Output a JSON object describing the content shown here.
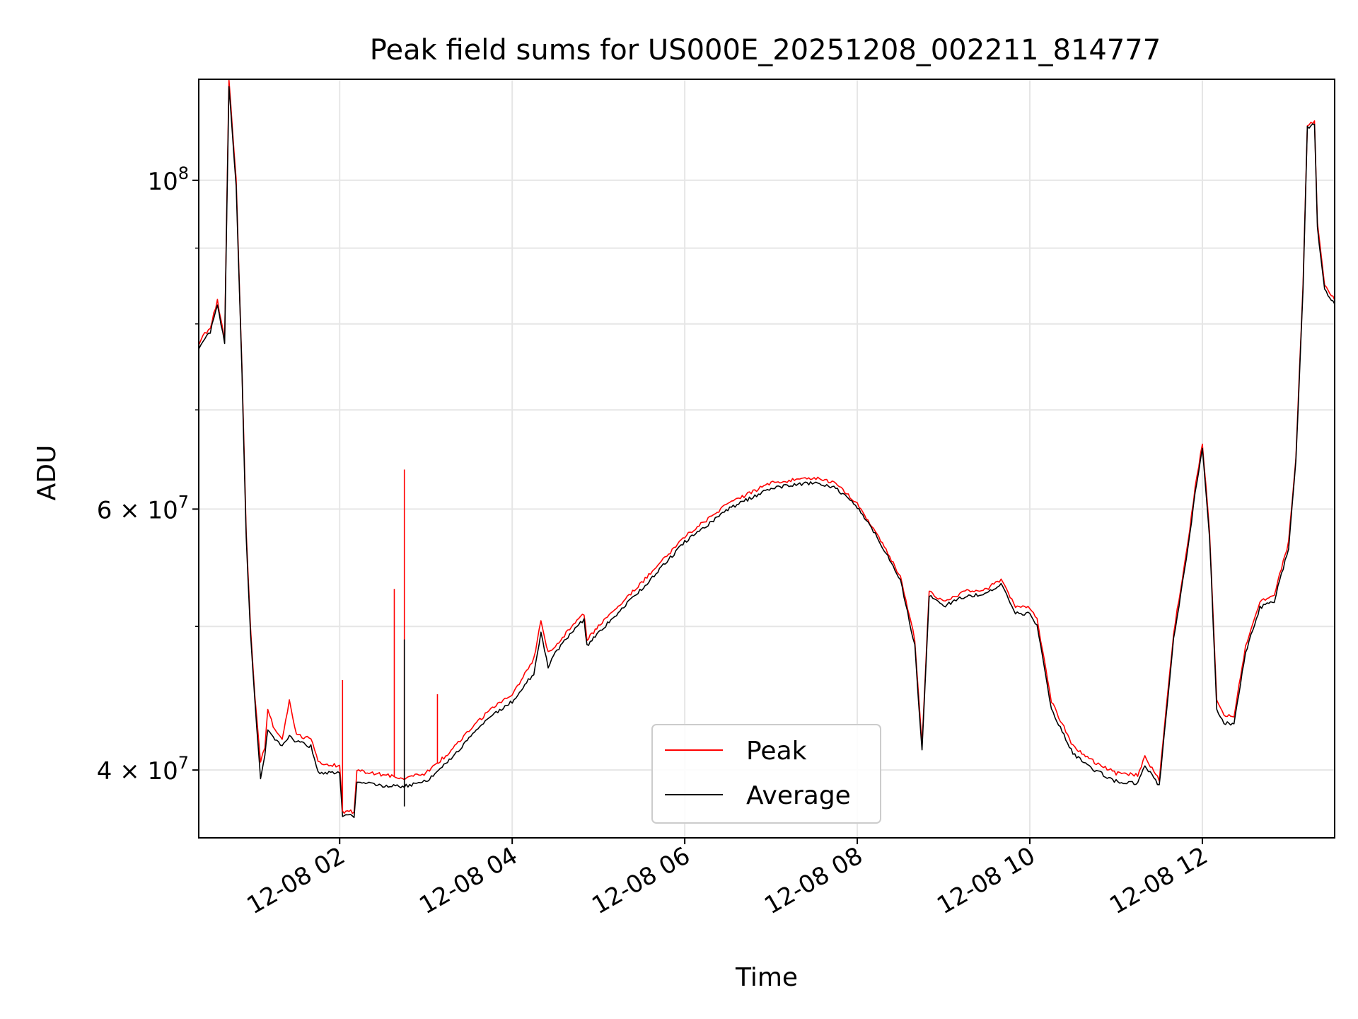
{
  "chart_data": {
    "type": "line",
    "title": "Peak field sums for US000E_20251208_002211_814777",
    "xlabel": "Time",
    "ylabel": "ADU",
    "y_scale": "log",
    "ylim": [
      36000000,
      117000000
    ],
    "xlim": [
      "12-08 00:22",
      "12-08 13:32"
    ],
    "grid": true,
    "legend_position": "lower center",
    "x_ticks": [
      {
        "t": "12-08 02:00",
        "label": "12-08 02"
      },
      {
        "t": "12-08 04:00",
        "label": "12-08 04"
      },
      {
        "t": "12-08 06:00",
        "label": "12-08 06"
      },
      {
        "t": "12-08 08:00",
        "label": "12-08 08"
      },
      {
        "t": "12-08 10:00",
        "label": "12-08 10"
      },
      {
        "t": "12-08 12:00",
        "label": "12-08 12"
      }
    ],
    "y_ticks": [
      {
        "v": 100000000,
        "base": "10",
        "exp": "8"
      },
      {
        "v": 60000000,
        "base": "6 × 10",
        "exp": "7"
      },
      {
        "v": 40000000,
        "base": "4 × 10",
        "exp": "7"
      }
    ],
    "y_minor_ticks": [
      50000000,
      70000000,
      80000000,
      90000000
    ],
    "series": [
      {
        "name": "Peak",
        "color": "#ff0000",
        "points": [
          [
            "12-08 00:22",
            77500000
          ],
          [
            "12-08 00:25",
            78500000
          ],
          [
            "12-08 00:30",
            79500000
          ],
          [
            "12-08 00:35",
            83000000
          ],
          [
            "12-08 00:40",
            78000000
          ],
          [
            "12-08 00:43",
            117000000
          ],
          [
            "12-08 00:48",
            100000000
          ],
          [
            "12-08 00:52",
            75000000
          ],
          [
            "12-08 00:55",
            58000000
          ],
          [
            "12-08 00:58",
            50000000
          ],
          [
            "12-08 01:01",
            45000000
          ],
          [
            "12-08 01:05",
            40500000
          ],
          [
            "12-08 01:08",
            41500000
          ],
          [
            "12-08 01:10",
            44000000
          ],
          [
            "12-08 01:15",
            42500000
          ],
          [
            "12-08 01:20",
            42000000
          ],
          [
            "12-08 01:25",
            44500000
          ],
          [
            "12-08 01:30",
            42200000
          ],
          [
            "12-08 01:40",
            42000000
          ],
          [
            "12-08 01:45",
            40500000
          ],
          [
            "12-08 01:55",
            40300000
          ],
          [
            "12-08 02:00",
            40300000
          ],
          [
            "12-08 02:02",
            37500000
          ],
          [
            "12-08 02:10",
            37500000
          ],
          [
            "12-08 02:12",
            40000000
          ],
          [
            "12-08 02:30",
            39700000
          ],
          [
            "12-08 02:45",
            39500000
          ],
          [
            "12-08 03:00",
            39800000
          ],
          [
            "12-08 03:15",
            41000000
          ],
          [
            "12-08 03:30",
            42500000
          ],
          [
            "12-08 03:45",
            44000000
          ],
          [
            "12-08 04:00",
            45000000
          ],
          [
            "12-08 04:15",
            47500000
          ],
          [
            "12-08 04:20",
            50500000
          ],
          [
            "12-08 04:25",
            48000000
          ],
          [
            "12-08 04:30",
            48500000
          ],
          [
            "12-08 04:45",
            50500000
          ],
          [
            "12-08 04:50",
            51000000
          ],
          [
            "12-08 04:52",
            49000000
          ],
          [
            "12-08 05:00",
            50000000
          ],
          [
            "12-08 05:30",
            53500000
          ],
          [
            "12-08 06:00",
            57500000
          ],
          [
            "12-08 06:30",
            60500000
          ],
          [
            "12-08 07:00",
            62500000
          ],
          [
            "12-08 07:30",
            63000000
          ],
          [
            "12-08 07:45",
            62500000
          ],
          [
            "12-08 08:00",
            60500000
          ],
          [
            "12-08 08:15",
            57500000
          ],
          [
            "12-08 08:30",
            54000000
          ],
          [
            "12-08 08:40",
            49000000
          ],
          [
            "12-08 08:45",
            41500000
          ],
          [
            "12-08 08:50",
            52800000
          ],
          [
            "12-08 09:00",
            52000000
          ],
          [
            "12-08 09:15",
            52800000
          ],
          [
            "12-08 09:30",
            53000000
          ],
          [
            "12-08 09:40",
            53800000
          ],
          [
            "12-08 09:50",
            51500000
          ],
          [
            "12-08 10:00",
            51500000
          ],
          [
            "12-08 10:05",
            50500000
          ],
          [
            "12-08 10:15",
            44500000
          ],
          [
            "12-08 10:30",
            41500000
          ],
          [
            "12-08 10:45",
            40500000
          ],
          [
            "12-08 11:00",
            39800000
          ],
          [
            "12-08 11:15",
            39700000
          ],
          [
            "12-08 11:20",
            40800000
          ],
          [
            "12-08 11:30",
            39400000
          ],
          [
            "12-08 11:40",
            49500000
          ],
          [
            "12-08 11:50",
            57000000
          ],
          [
            "12-08 11:55",
            62000000
          ],
          [
            "12-08 12:00",
            66500000
          ],
          [
            "12-08 12:05",
            58000000
          ],
          [
            "12-08 12:10",
            44500000
          ],
          [
            "12-08 12:15",
            43500000
          ],
          [
            "12-08 12:22",
            43500000
          ],
          [
            "12-08 12:30",
            48500000
          ],
          [
            "12-08 12:40",
            52000000
          ],
          [
            "12-08 12:50",
            52500000
          ],
          [
            "12-08 13:00",
            57000000
          ],
          [
            "12-08 13:05",
            65000000
          ],
          [
            "12-08 13:10",
            85000000
          ],
          [
            "12-08 13:13",
            109000000
          ],
          [
            "12-08 13:18",
            109500000
          ],
          [
            "12-08 13:20",
            93500000
          ],
          [
            "12-08 13:25",
            85000000
          ],
          [
            "12-08 13:32",
            83000000
          ]
        ]
      },
      {
        "name": "Average",
        "color": "#000000",
        "points": [
          [
            "12-08 00:22",
            77000000
          ],
          [
            "12-08 00:25",
            78000000
          ],
          [
            "12-08 00:30",
            79000000
          ],
          [
            "12-08 00:35",
            82500000
          ],
          [
            "12-08 00:40",
            77500000
          ],
          [
            "12-08 00:43",
            116000000
          ],
          [
            "12-08 00:48",
            99000000
          ],
          [
            "12-08 00:52",
            74500000
          ],
          [
            "12-08 00:55",
            57500000
          ],
          [
            "12-08 00:58",
            49500000
          ],
          [
            "12-08 01:01",
            44500000
          ],
          [
            "12-08 01:05",
            39500000
          ],
          [
            "12-08 01:08",
            41000000
          ],
          [
            "12-08 01:10",
            42500000
          ],
          [
            "12-08 01:15",
            42000000
          ],
          [
            "12-08 01:20",
            41500000
          ],
          [
            "12-08 01:25",
            42200000
          ],
          [
            "12-08 01:30",
            41800000
          ],
          [
            "12-08 01:40",
            41500000
          ],
          [
            "12-08 01:45",
            39800000
          ],
          [
            "12-08 01:55",
            39800000
          ],
          [
            "12-08 02:00",
            39800000
          ],
          [
            "12-08 02:02",
            37300000
          ],
          [
            "12-08 02:10",
            37200000
          ],
          [
            "12-08 02:12",
            39300000
          ],
          [
            "12-08 02:30",
            39000000
          ],
          [
            "12-08 02:45",
            39000000
          ],
          [
            "12-08 03:00",
            39300000
          ],
          [
            "12-08 03:15",
            40500000
          ],
          [
            "12-08 03:30",
            42000000
          ],
          [
            "12-08 03:45",
            43500000
          ],
          [
            "12-08 04:00",
            44500000
          ],
          [
            "12-08 04:15",
            46500000
          ],
          [
            "12-08 04:20",
            49500000
          ],
          [
            "12-08 04:25",
            47000000
          ],
          [
            "12-08 04:30",
            48000000
          ],
          [
            "12-08 04:45",
            50000000
          ],
          [
            "12-08 04:50",
            50500000
          ],
          [
            "12-08 04:52",
            48500000
          ],
          [
            "12-08 05:00",
            49500000
          ],
          [
            "12-08 05:30",
            53000000
          ],
          [
            "12-08 06:00",
            57000000
          ],
          [
            "12-08 06:30",
            60000000
          ],
          [
            "12-08 07:00",
            62000000
          ],
          [
            "12-08 07:30",
            62500000
          ],
          [
            "12-08 07:45",
            62000000
          ],
          [
            "12-08 08:00",
            60200000
          ],
          [
            "12-08 08:15",
            57200000
          ],
          [
            "12-08 08:30",
            53800000
          ],
          [
            "12-08 08:40",
            48500000
          ],
          [
            "12-08 08:45",
            41200000
          ],
          [
            "12-08 08:50",
            52500000
          ],
          [
            "12-08 09:00",
            51600000
          ],
          [
            "12-08 09:15",
            52400000
          ],
          [
            "12-08 09:30",
            52600000
          ],
          [
            "12-08 09:40",
            53400000
          ],
          [
            "12-08 09:50",
            51000000
          ],
          [
            "12-08 10:00",
            51000000
          ],
          [
            "12-08 10:05",
            50000000
          ],
          [
            "12-08 10:15",
            44000000
          ],
          [
            "12-08 10:30",
            41000000
          ],
          [
            "12-08 10:45",
            40000000
          ],
          [
            "12-08 11:00",
            39300000
          ],
          [
            "12-08 11:15",
            39200000
          ],
          [
            "12-08 11:20",
            40300000
          ],
          [
            "12-08 11:30",
            39000000
          ],
          [
            "12-08 11:40",
            49000000
          ],
          [
            "12-08 11:50",
            56500000
          ],
          [
            "12-08 11:55",
            61500000
          ],
          [
            "12-08 12:00",
            66000000
          ],
          [
            "12-08 12:05",
            57500000
          ],
          [
            "12-08 12:10",
            44000000
          ],
          [
            "12-08 12:15",
            43000000
          ],
          [
            "12-08 12:22",
            43000000
          ],
          [
            "12-08 12:30",
            48000000
          ],
          [
            "12-08 12:40",
            51500000
          ],
          [
            "12-08 12:50",
            52000000
          ],
          [
            "12-08 13:00",
            56500000
          ],
          [
            "12-08 13:05",
            64500000
          ],
          [
            "12-08 13:10",
            84500000
          ],
          [
            "12-08 13:13",
            108500000
          ],
          [
            "12-08 13:18",
            109000000
          ],
          [
            "12-08 13:20",
            93000000
          ],
          [
            "12-08 13:25",
            84500000
          ],
          [
            "12-08 13:32",
            82500000
          ]
        ]
      }
    ],
    "spikes": [
      {
        "series": "Peak",
        "t": "12-08 02:02",
        "v": 46000000
      },
      {
        "series": "Peak",
        "t": "12-08 02:38",
        "v": 53000000
      },
      {
        "series": "Peak",
        "t": "12-08 02:45",
        "v": 63800000
      },
      {
        "series": "Average",
        "t": "12-08 02:45",
        "v": 49000000
      },
      {
        "series": "Average",
        "t": "12-08 02:45",
        "v": 37800000
      },
      {
        "series": "Peak",
        "t": "12-08 03:08",
        "v": 45000000
      }
    ]
  }
}
